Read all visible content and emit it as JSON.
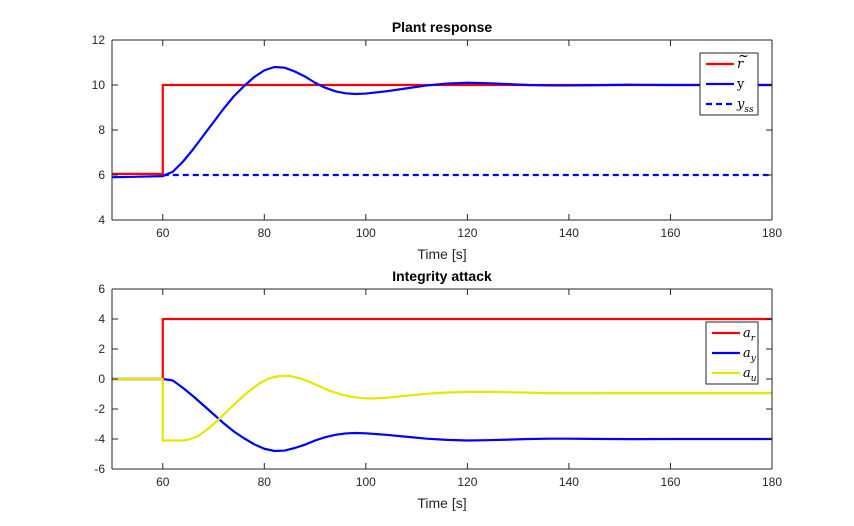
{
  "chart_data": [
    {
      "type": "line",
      "title": "Plant response",
      "xlabel": "Time [s]",
      "ylabel": "",
      "xlim": [
        50,
        180
      ],
      "ylim": [
        4,
        12
      ],
      "xticks": [
        60,
        80,
        100,
        120,
        140,
        160,
        180
      ],
      "yticks": [
        4,
        6,
        8,
        10,
        12
      ],
      "legend_position": "top-right",
      "series": [
        {
          "name": "r̃",
          "color": "#ff0000",
          "style": "solid",
          "x": [
            50,
            60,
            60,
            180
          ],
          "y": [
            6.05,
            6.05,
            10,
            10
          ]
        },
        {
          "name": "y",
          "color": "#0000ff",
          "style": "solid",
          "x": [
            50,
            60,
            62,
            64,
            66,
            68,
            70,
            72,
            74,
            76,
            78,
            80,
            82,
            84,
            86,
            88,
            90,
            92,
            94,
            96,
            98,
            100,
            104,
            108,
            112,
            116,
            120,
            124,
            128,
            132,
            136,
            140,
            144,
            148,
            152,
            160,
            170,
            180
          ],
          "y": [
            5.9,
            5.95,
            6.15,
            6.6,
            7.15,
            7.75,
            8.35,
            8.95,
            9.5,
            9.95,
            10.35,
            10.65,
            10.8,
            10.77,
            10.6,
            10.38,
            10.1,
            9.88,
            9.72,
            9.63,
            9.6,
            9.62,
            9.72,
            9.85,
            9.98,
            10.06,
            10.1,
            10.08,
            10.04,
            10.0,
            9.98,
            9.98,
            9.99,
            10.0,
            10.01,
            10.0,
            10.0,
            10.0
          ]
        },
        {
          "name": "y_ss",
          "color": "#0000ff",
          "style": "dashed",
          "x": [
            60,
            180
          ],
          "y": [
            6.0,
            6.0
          ]
        }
      ]
    },
    {
      "type": "line",
      "title": "Integrity attack",
      "xlabel": "Time [s]",
      "ylabel": "",
      "xlim": [
        50,
        180
      ],
      "ylim": [
        -6,
        6
      ],
      "xticks": [
        60,
        80,
        100,
        120,
        140,
        160,
        180
      ],
      "yticks": [
        -6,
        -4,
        -2,
        0,
        2,
        4,
        6
      ],
      "legend_position": "top-right",
      "series": [
        {
          "name": "a_r",
          "color": "#ff0000",
          "style": "solid",
          "x": [
            50,
            60,
            60,
            180
          ],
          "y": [
            0,
            0,
            4,
            4
          ]
        },
        {
          "name": "a_y",
          "color": "#0000ff",
          "style": "solid",
          "x": [
            50,
            60,
            62,
            64,
            66,
            68,
            70,
            72,
            74,
            76,
            78,
            80,
            82,
            84,
            86,
            88,
            90,
            92,
            94,
            96,
            98,
            100,
            104,
            108,
            112,
            116,
            120,
            124,
            128,
            132,
            136,
            140,
            144,
            148,
            152,
            160,
            170,
            180
          ],
          "y": [
            0,
            0,
            -0.1,
            -0.6,
            -1.15,
            -1.75,
            -2.35,
            -2.95,
            -3.5,
            -3.95,
            -4.35,
            -4.65,
            -4.8,
            -4.77,
            -4.6,
            -4.38,
            -4.1,
            -3.88,
            -3.72,
            -3.63,
            -3.6,
            -3.62,
            -3.72,
            -3.85,
            -3.98,
            -4.06,
            -4.1,
            -4.08,
            -4.04,
            -4.0,
            -3.98,
            -3.98,
            -3.99,
            -4.0,
            -4.01,
            -4.0,
            -4.0,
            -4.0
          ]
        },
        {
          "name": "a_u",
          "color": "#e6e600",
          "style": "solid",
          "x": [
            50,
            60,
            60,
            62,
            64,
            65,
            67,
            69,
            71,
            73,
            75,
            77,
            79,
            81,
            83,
            85,
            87,
            89,
            91,
            93,
            95,
            97,
            99,
            101,
            104,
            108,
            112,
            116,
            120,
            124,
            128,
            132,
            136,
            140,
            150,
            160,
            170,
            180
          ],
          "y": [
            0,
            0,
            -4.1,
            -4.1,
            -4.1,
            -4.05,
            -3.8,
            -3.3,
            -2.7,
            -2.05,
            -1.4,
            -0.8,
            -0.3,
            0.05,
            0.2,
            0.2,
            0.05,
            -0.2,
            -0.5,
            -0.8,
            -1.02,
            -1.18,
            -1.27,
            -1.3,
            -1.25,
            -1.12,
            -0.98,
            -0.9,
            -0.86,
            -0.86,
            -0.88,
            -0.91,
            -0.94,
            -0.95,
            -0.94,
            -0.94,
            -0.94,
            -0.94
          ]
        }
      ]
    }
  ]
}
